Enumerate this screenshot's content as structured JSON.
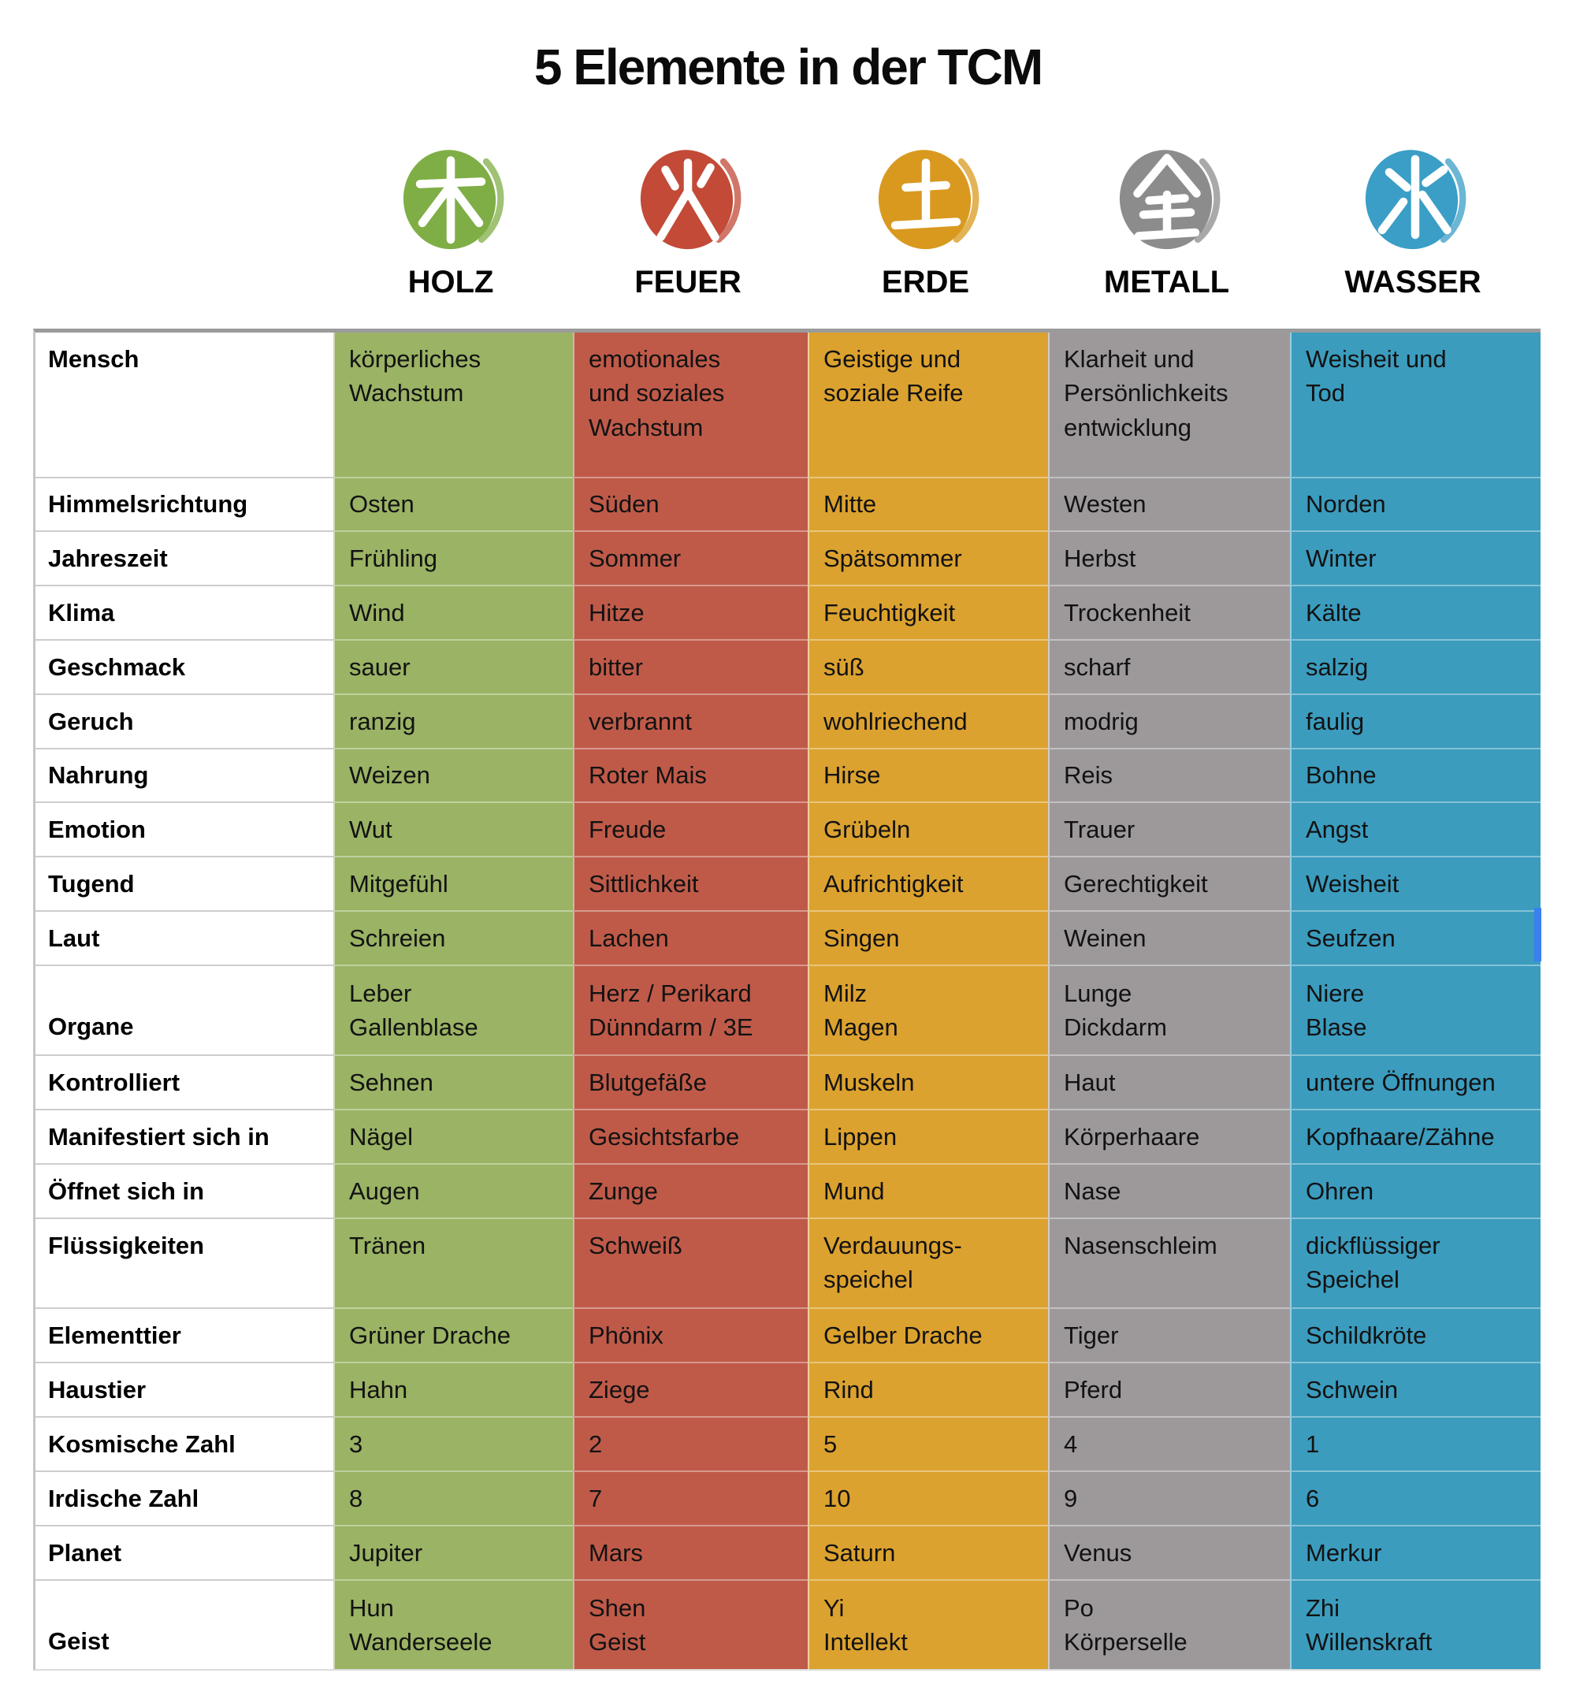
{
  "title": "5 Elemente in der TCM",
  "elements": [
    {
      "name": "HOLZ",
      "character": "木",
      "column_color": "#9ab364",
      "icon_color": "#7fae46"
    },
    {
      "name": "FEUER",
      "character": "火",
      "column_color": "#bf5a49",
      "icon_color": "#c24a37"
    },
    {
      "name": "ERDE",
      "character": "土",
      "column_color": "#dca22f",
      "icon_color": "#d9991f"
    },
    {
      "name": "METALL",
      "character": "金",
      "column_color": "#9d999a",
      "icon_color": "#8c8c8c"
    },
    {
      "name": "WASSER",
      "character": "水",
      "column_color": "#3b9cbe",
      "icon_color": "#3a9ec6"
    }
  ],
  "chart_data": {
    "type": "table",
    "title": "5 Elemente in der TCM",
    "columns": [
      "",
      "HOLZ",
      "FEUER",
      "ERDE",
      "METALL",
      "WASSER"
    ],
    "rows": [
      {
        "label": "Mensch",
        "values": [
          "körperliches\nWachstum",
          "emotionales\nund soziales\nWachstum",
          "Geistige und\nsoziale Reife",
          "Klarheit und\nPersönlichkeits\nentwicklung",
          "Weisheit und\nTod"
        ]
      },
      {
        "label": "Himmelsrichtung",
        "values": [
          "Osten",
          "Süden",
          "Mitte",
          "Westen",
          "Norden"
        ]
      },
      {
        "label": "Jahreszeit",
        "values": [
          "Frühling",
          "Sommer",
          "Spätsommer",
          "Herbst",
          "Winter"
        ]
      },
      {
        "label": "Klima",
        "values": [
          "Wind",
          "Hitze",
          "Feuchtigkeit",
          "Trockenheit",
          "Kälte"
        ]
      },
      {
        "label": "Geschmack",
        "values": [
          "sauer",
          "bitter",
          "süß",
          "scharf",
          "salzig"
        ]
      },
      {
        "label": "Geruch",
        "values": [
          "ranzig",
          "verbrannt",
          "wohlriechend",
          "modrig",
          "faulig"
        ]
      },
      {
        "label": "Nahrung",
        "values": [
          "Weizen",
          "Roter Mais",
          "Hirse",
          "Reis",
          "Bohne"
        ]
      },
      {
        "label": "Emotion",
        "values": [
          "Wut",
          "Freude",
          "Grübeln",
          "Trauer",
          "Angst"
        ]
      },
      {
        "label": "Tugend",
        "values": [
          "Mitgefühl",
          "Sittlichkeit",
          "Aufrichtigkeit",
          "Gerechtigkeit",
          "Weisheit"
        ]
      },
      {
        "label": "Laut",
        "values": [
          "Schreien",
          "Lachen",
          "Singen",
          "Weinen",
          "Seufzen"
        ]
      },
      {
        "label": "Organe",
        "values": [
          "Leber\nGallenblase",
          "Herz / Perikard\nDünndarm / 3E",
          "Milz\nMagen",
          "Lunge\nDickdarm",
          "Niere\nBlase"
        ]
      },
      {
        "label": "Kontrolliert",
        "values": [
          "Sehnen",
          "Blutgefäße",
          "Muskeln",
          "Haut",
          "untere Öffnungen"
        ]
      },
      {
        "label": "Manifestiert sich in",
        "values": [
          "Nägel",
          "Gesichtsfarbe",
          "Lippen",
          "Körperhaare",
          "Kopfhaare/Zähne"
        ]
      },
      {
        "label": "Öffnet sich in",
        "values": [
          "Augen",
          "Zunge",
          "Mund",
          "Nase",
          "Ohren"
        ]
      },
      {
        "label": "Flüssigkeiten",
        "values": [
          "Tränen",
          "Schweiß",
          "Verdauungs-\nspeichel",
          "Nasenschleim",
          "dickflüssiger\nSpeichel"
        ]
      },
      {
        "label": "Elementtier",
        "values": [
          "Grüner Drache",
          "Phönix",
          "Gelber Drache",
          "Tiger",
          "Schildkröte"
        ]
      },
      {
        "label": "Haustier",
        "values": [
          "Hahn",
          "Ziege",
          "Rind",
          "Pferd",
          "Schwein"
        ]
      },
      {
        "label": "Kosmische Zahl",
        "values": [
          "3",
          "2",
          "5",
          "4",
          "1"
        ]
      },
      {
        "label": "Irdische Zahl",
        "values": [
          "8",
          "7",
          "10",
          "9",
          "6"
        ]
      },
      {
        "label": "Planet",
        "values": [
          "Jupiter",
          "Mars",
          "Saturn",
          "Venus",
          "Merkur"
        ]
      },
      {
        "label": "Geist",
        "values": [
          "Hun\nWanderseele",
          "Shen\nGeist",
          "Yi\nIntellekt",
          "Po\nKörperselle",
          "Zhi\nWillenskraft"
        ]
      }
    ]
  }
}
